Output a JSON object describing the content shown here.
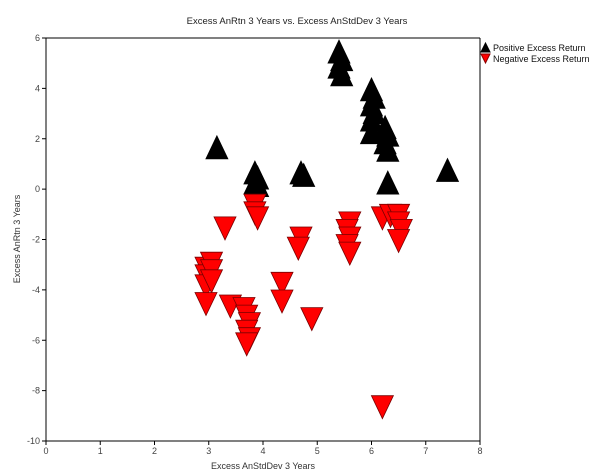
{
  "chart_data": {
    "type": "scatter",
    "title": "Excess AnRtn 3 Years vs. Excess AnStdDev 3 Years",
    "xlabel": "Excess AnStdDev 3 Years",
    "ylabel": "Excess AnRtn 3 Years",
    "xlim": [
      0,
      8
    ],
    "ylim": [
      -10,
      6
    ],
    "xticks": [
      "0",
      "1",
      "2",
      "3",
      "4",
      "5",
      "6",
      "7",
      "8"
    ],
    "yticks": [
      "6",
      "4",
      "2",
      "0",
      "-2",
      "-4",
      "-6",
      "-8",
      "-10"
    ],
    "grid": false,
    "legend_position": "top-right",
    "series": [
      {
        "name": "Positive Excess Return",
        "marker": "triangle-up",
        "color": "#000000",
        "points": [
          [
            3.15,
            1.6
          ],
          [
            3.85,
            0.6
          ],
          [
            3.9,
            0.4
          ],
          [
            3.85,
            0.2
          ],
          [
            3.9,
            0.1
          ],
          [
            4.7,
            0.6
          ],
          [
            4.75,
            0.5
          ],
          [
            5.4,
            5.4
          ],
          [
            5.45,
            5.1
          ],
          [
            5.4,
            4.8
          ],
          [
            5.45,
            4.5
          ],
          [
            6.0,
            3.9
          ],
          [
            6.05,
            3.6
          ],
          [
            6.0,
            3.3
          ],
          [
            6.05,
            3.0
          ],
          [
            6.0,
            2.7
          ],
          [
            6.0,
            2.2
          ],
          [
            6.25,
            2.4
          ],
          [
            6.3,
            2.1
          ],
          [
            6.25,
            1.8
          ],
          [
            6.3,
            1.5
          ],
          [
            6.3,
            0.2
          ],
          [
            7.4,
            0.7
          ]
        ]
      },
      {
        "name": "Negative Excess Return",
        "marker": "triangle-down",
        "color": "#ff0000",
        "points": [
          [
            3.3,
            -1.5
          ],
          [
            3.85,
            -0.6
          ],
          [
            3.85,
            -0.9
          ],
          [
            3.9,
            -1.1
          ],
          [
            2.95,
            -3.1
          ],
          [
            3.05,
            -2.9
          ],
          [
            2.95,
            -3.4
          ],
          [
            3.05,
            -3.2
          ],
          [
            2.95,
            -3.8
          ],
          [
            3.05,
            -3.6
          ],
          [
            2.95,
            -4.5
          ],
          [
            3.4,
            -4.6
          ],
          [
            3.65,
            -4.7
          ],
          [
            3.7,
            -5.0
          ],
          [
            3.75,
            -5.3
          ],
          [
            3.7,
            -5.6
          ],
          [
            3.75,
            -5.9
          ],
          [
            3.7,
            -6.1
          ],
          [
            4.35,
            -3.7
          ],
          [
            4.35,
            -4.4
          ],
          [
            4.7,
            -1.9
          ],
          [
            4.65,
            -2.3
          ],
          [
            4.9,
            -5.1
          ],
          [
            5.6,
            -1.3
          ],
          [
            5.55,
            -1.6
          ],
          [
            5.6,
            -1.9
          ],
          [
            5.55,
            -2.2
          ],
          [
            5.6,
            -2.5
          ],
          [
            6.2,
            -1.1
          ],
          [
            6.35,
            -1.0
          ],
          [
            6.5,
            -1.0
          ],
          [
            6.5,
            -1.3
          ],
          [
            6.55,
            -1.6
          ],
          [
            6.5,
            -2.0
          ],
          [
            6.2,
            -8.6
          ]
        ]
      }
    ]
  }
}
